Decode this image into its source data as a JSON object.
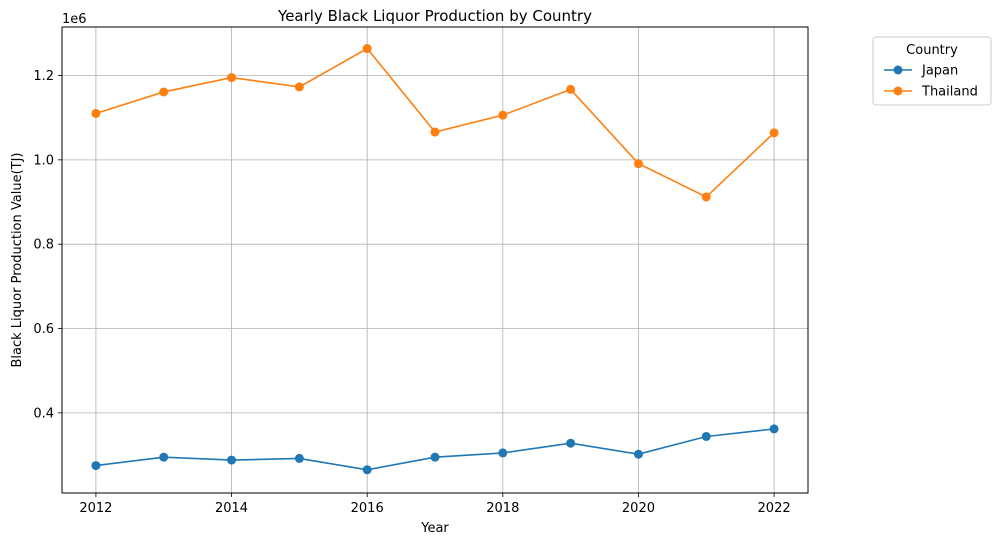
{
  "chart_data": {
    "type": "line",
    "title": "Yearly Black Liquor Production by Country",
    "xlabel": "Year",
    "ylabel": "Black Liquor Production Value(TJ)",
    "y_offset_label": "1e6",
    "x": [
      2012,
      2013,
      2014,
      2015,
      2016,
      2017,
      2018,
      2019,
      2020,
      2021,
      2022
    ],
    "xlim": [
      2011.5,
      2022.5
    ],
    "ylim": [
      0.21,
      1.315
    ],
    "y_scale_note": "values in millions (×1e6)",
    "xticks": [
      2012,
      2014,
      2016,
      2018,
      2020,
      2022
    ],
    "yticks": [
      0.4,
      0.6,
      0.8,
      1.0,
      1.2
    ],
    "ytick_labels": [
      "0.4",
      "0.6",
      "0.8",
      "1.0",
      "1.2"
    ],
    "grid": true,
    "legend_title": "Country",
    "legend_placement": "outside-top-right",
    "series": [
      {
        "name": "Japan",
        "color": "#1f77b4",
        "values": [
          0.275,
          0.295,
          0.288,
          0.292,
          0.265,
          0.295,
          0.305,
          0.328,
          0.302,
          0.344,
          0.362
        ]
      },
      {
        "name": "Thailand",
        "color": "#ff7f0e",
        "values": [
          1.11,
          1.161,
          1.195,
          1.173,
          1.264,
          1.066,
          1.106,
          1.167,
          0.991,
          0.912,
          1.064
        ]
      }
    ]
  }
}
